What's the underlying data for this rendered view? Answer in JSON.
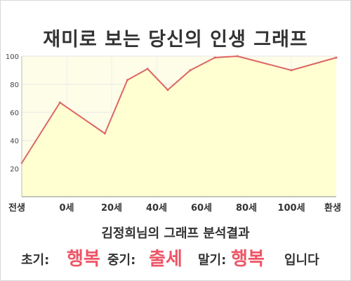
{
  "header": {
    "title": "재미로 보는 당신의 인생 그래프"
  },
  "colors": {
    "line": "#dd6666",
    "fill": "#ffffcc",
    "plot_bg": "#fdfde8",
    "accent": "#ee5566"
  },
  "chart_data": {
    "type": "area",
    "title": "재미로 보는 당신의 인생 그래프",
    "xlabel": "",
    "ylabel": "",
    "ylim": [
      0,
      100
    ],
    "yticks": [
      20,
      40,
      60,
      80,
      100
    ],
    "xtick_labels": [
      "전생",
      "0세",
      "20세",
      "40세",
      "60세",
      "80세",
      "100세",
      "환생"
    ],
    "points": [
      {
        "x": 0,
        "y": 24
      },
      {
        "x": 0.85,
        "y": 67
      },
      {
        "x": 1.85,
        "y": 45
      },
      {
        "x": 2.35,
        "y": 83
      },
      {
        "x": 2.8,
        "y": 91
      },
      {
        "x": 3.25,
        "y": 76
      },
      {
        "x": 3.75,
        "y": 90
      },
      {
        "x": 4.3,
        "y": 99
      },
      {
        "x": 4.8,
        "y": 100
      },
      {
        "x": 6,
        "y": 90
      },
      {
        "x": 7,
        "y": 99
      }
    ],
    "grid": true,
    "legend": "none"
  },
  "result": {
    "subtitle": "김정희님의 그래프 분석결과",
    "early_label": "초기:",
    "early_value": "행복",
    "middle_label": "중기:",
    "middle_value": "출세",
    "late_label": "말기:",
    "late_value": "행복",
    "suffix": "입니다"
  }
}
